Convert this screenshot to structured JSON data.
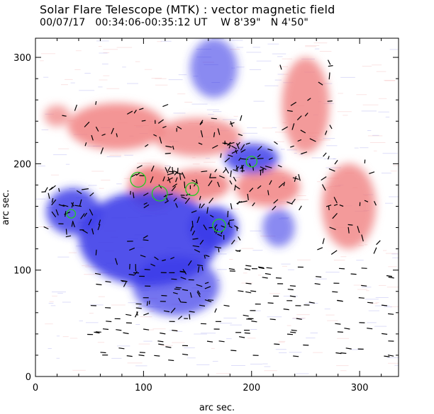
{
  "chart_data": {
    "type": "heatmap",
    "title": "Solar Flare Telescope (MTK) : vector magnetic field",
    "subtitle": "00/07/17   00:34:06-00:35:12 UT    W 8'39\"   N 4'50\"",
    "xlabel": "arc sec.",
    "ylabel": "arc sec.",
    "xlim": [
      0,
      336
    ],
    "ylim": [
      0,
      318
    ],
    "xticks": [
      0,
      100,
      200,
      300
    ],
    "yticks": [
      0,
      100,
      200,
      300
    ],
    "grid": false,
    "colors": {
      "positive_polarity": "#f08080",
      "negative_polarity": "#3a3ae8",
      "neutral_line": "#22cc22",
      "vectors": "#000000"
    },
    "regions": [
      {
        "polarity": "positive",
        "x": 75,
        "y": 235,
        "rx": 45,
        "ry": 22,
        "strength": 0.7
      },
      {
        "polarity": "positive",
        "x": 150,
        "y": 225,
        "rx": 40,
        "ry": 18,
        "strength": 0.6
      },
      {
        "polarity": "positive",
        "x": 108,
        "y": 178,
        "rx": 22,
        "ry": 20,
        "strength": 1.0
      },
      {
        "polarity": "positive",
        "x": 150,
        "y": 180,
        "rx": 30,
        "ry": 15,
        "strength": 0.8
      },
      {
        "polarity": "positive",
        "x": 215,
        "y": 178,
        "rx": 30,
        "ry": 18,
        "strength": 0.7
      },
      {
        "polarity": "positive",
        "x": 250,
        "y": 255,
        "rx": 22,
        "ry": 45,
        "strength": 0.6
      },
      {
        "polarity": "positive",
        "x": 290,
        "y": 160,
        "rx": 25,
        "ry": 40,
        "strength": 0.6
      },
      {
        "polarity": "positive",
        "x": 20,
        "y": 245,
        "rx": 12,
        "ry": 10,
        "strength": 0.4
      },
      {
        "polarity": "negative",
        "x": 35,
        "y": 155,
        "rx": 25,
        "ry": 22,
        "strength": 0.8
      },
      {
        "polarity": "negative",
        "x": 105,
        "y": 130,
        "rx": 65,
        "ry": 45,
        "strength": 0.9
      },
      {
        "polarity": "negative",
        "x": 165,
        "y": 140,
        "rx": 22,
        "ry": 20,
        "strength": 0.9
      },
      {
        "polarity": "negative",
        "x": 200,
        "y": 205,
        "rx": 25,
        "ry": 14,
        "strength": 0.8
      },
      {
        "polarity": "negative",
        "x": 130,
        "y": 85,
        "rx": 40,
        "ry": 28,
        "strength": 0.6
      },
      {
        "polarity": "negative",
        "x": 165,
        "y": 290,
        "rx": 22,
        "ry": 28,
        "strength": 0.4
      },
      {
        "polarity": "negative",
        "x": 225,
        "y": 140,
        "rx": 15,
        "ry": 18,
        "strength": 0.4
      }
    ],
    "neutral_lines": [
      {
        "x": 33,
        "y": 153,
        "r": 4
      },
      {
        "x": 170,
        "y": 142,
        "r": 6
      },
      {
        "x": 200,
        "y": 202,
        "r": 5
      },
      {
        "x": 95,
        "y": 185,
        "r": 7
      },
      {
        "x": 115,
        "y": 172,
        "r": 7
      },
      {
        "x": 145,
        "y": 176,
        "r": 6
      }
    ]
  }
}
